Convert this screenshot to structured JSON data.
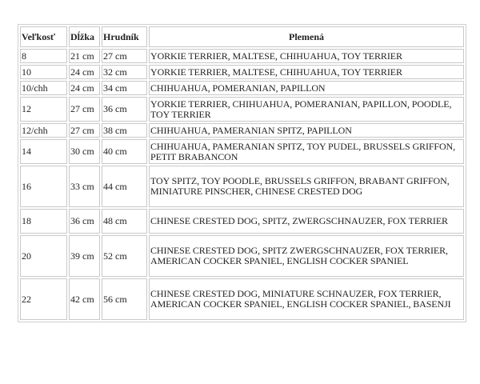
{
  "table": {
    "headers": [
      "Veľkosť",
      "Dĺžka",
      "Hrudník",
      "Plemená"
    ],
    "rows": [
      [
        "8",
        "21 cm",
        "27 cm",
        "YORKIE TERRIER, MALTESE, CHIHUAHUA, TOY TERRIER"
      ],
      [
        "10",
        "24 cm",
        "32 cm",
        "YORKIE TERRIER, MALTESE, CHIHUAHUA, TOY TERRIER"
      ],
      [
        "10/chh",
        "24 cm",
        "34 cm",
        "CHIHUAHUA, POMERANIAN, PAPILLON"
      ],
      [
        "12",
        "27 cm",
        "36 cm",
        "YORKIE TERRIER, CHIHUAHUA, POMERANIAN, PAPILLON, POODLE, TOY TERRIER"
      ],
      [
        "12/chh",
        "27 cm",
        "38 cm",
        "CHIHUAHUA, PAMERANIAN SPITZ, PAPILLON"
      ],
      [
        "14",
        "30 cm",
        "40 cm",
        "CHIHUAHUA, PAMERANIAN SPITZ, TOY PUDEL, BRUSSELS GRIFFON, PETIT BRABANCON"
      ],
      [
        "16",
        "33 cm",
        "44 cm",
        "TOY SPITZ, TOY POODLE, BRUSSELS GRIFFON, BRABANT GRIFFON, MINIATURE PINSCHER, CHINESE CRESTED DOG"
      ],
      [
        "18",
        "36 cm",
        "48 cm",
        "CHINESE CRESTED DOG, SPITZ, ZWERGSCHNAUZER, FOX TERRIER"
      ],
      [
        "20",
        "39 cm",
        "52 cm",
        "CHINESE CRESTED DOG, SPITZ ZWERGSCHNAUZER, FOX TERRIER, AMERICAN COCKER SPANIEL, ENGLISH COCKER SPANIEL"
      ],
      [
        "22",
        "42 cm",
        "56 cm",
        "CHINESE CRESTED DOG, MINIATURE SCHNAUZER, FOX TERRIER, AMERICAN COCKER SPANIEL, ENGLISH COCKER SPANIEL, BASENJI"
      ]
    ]
  }
}
